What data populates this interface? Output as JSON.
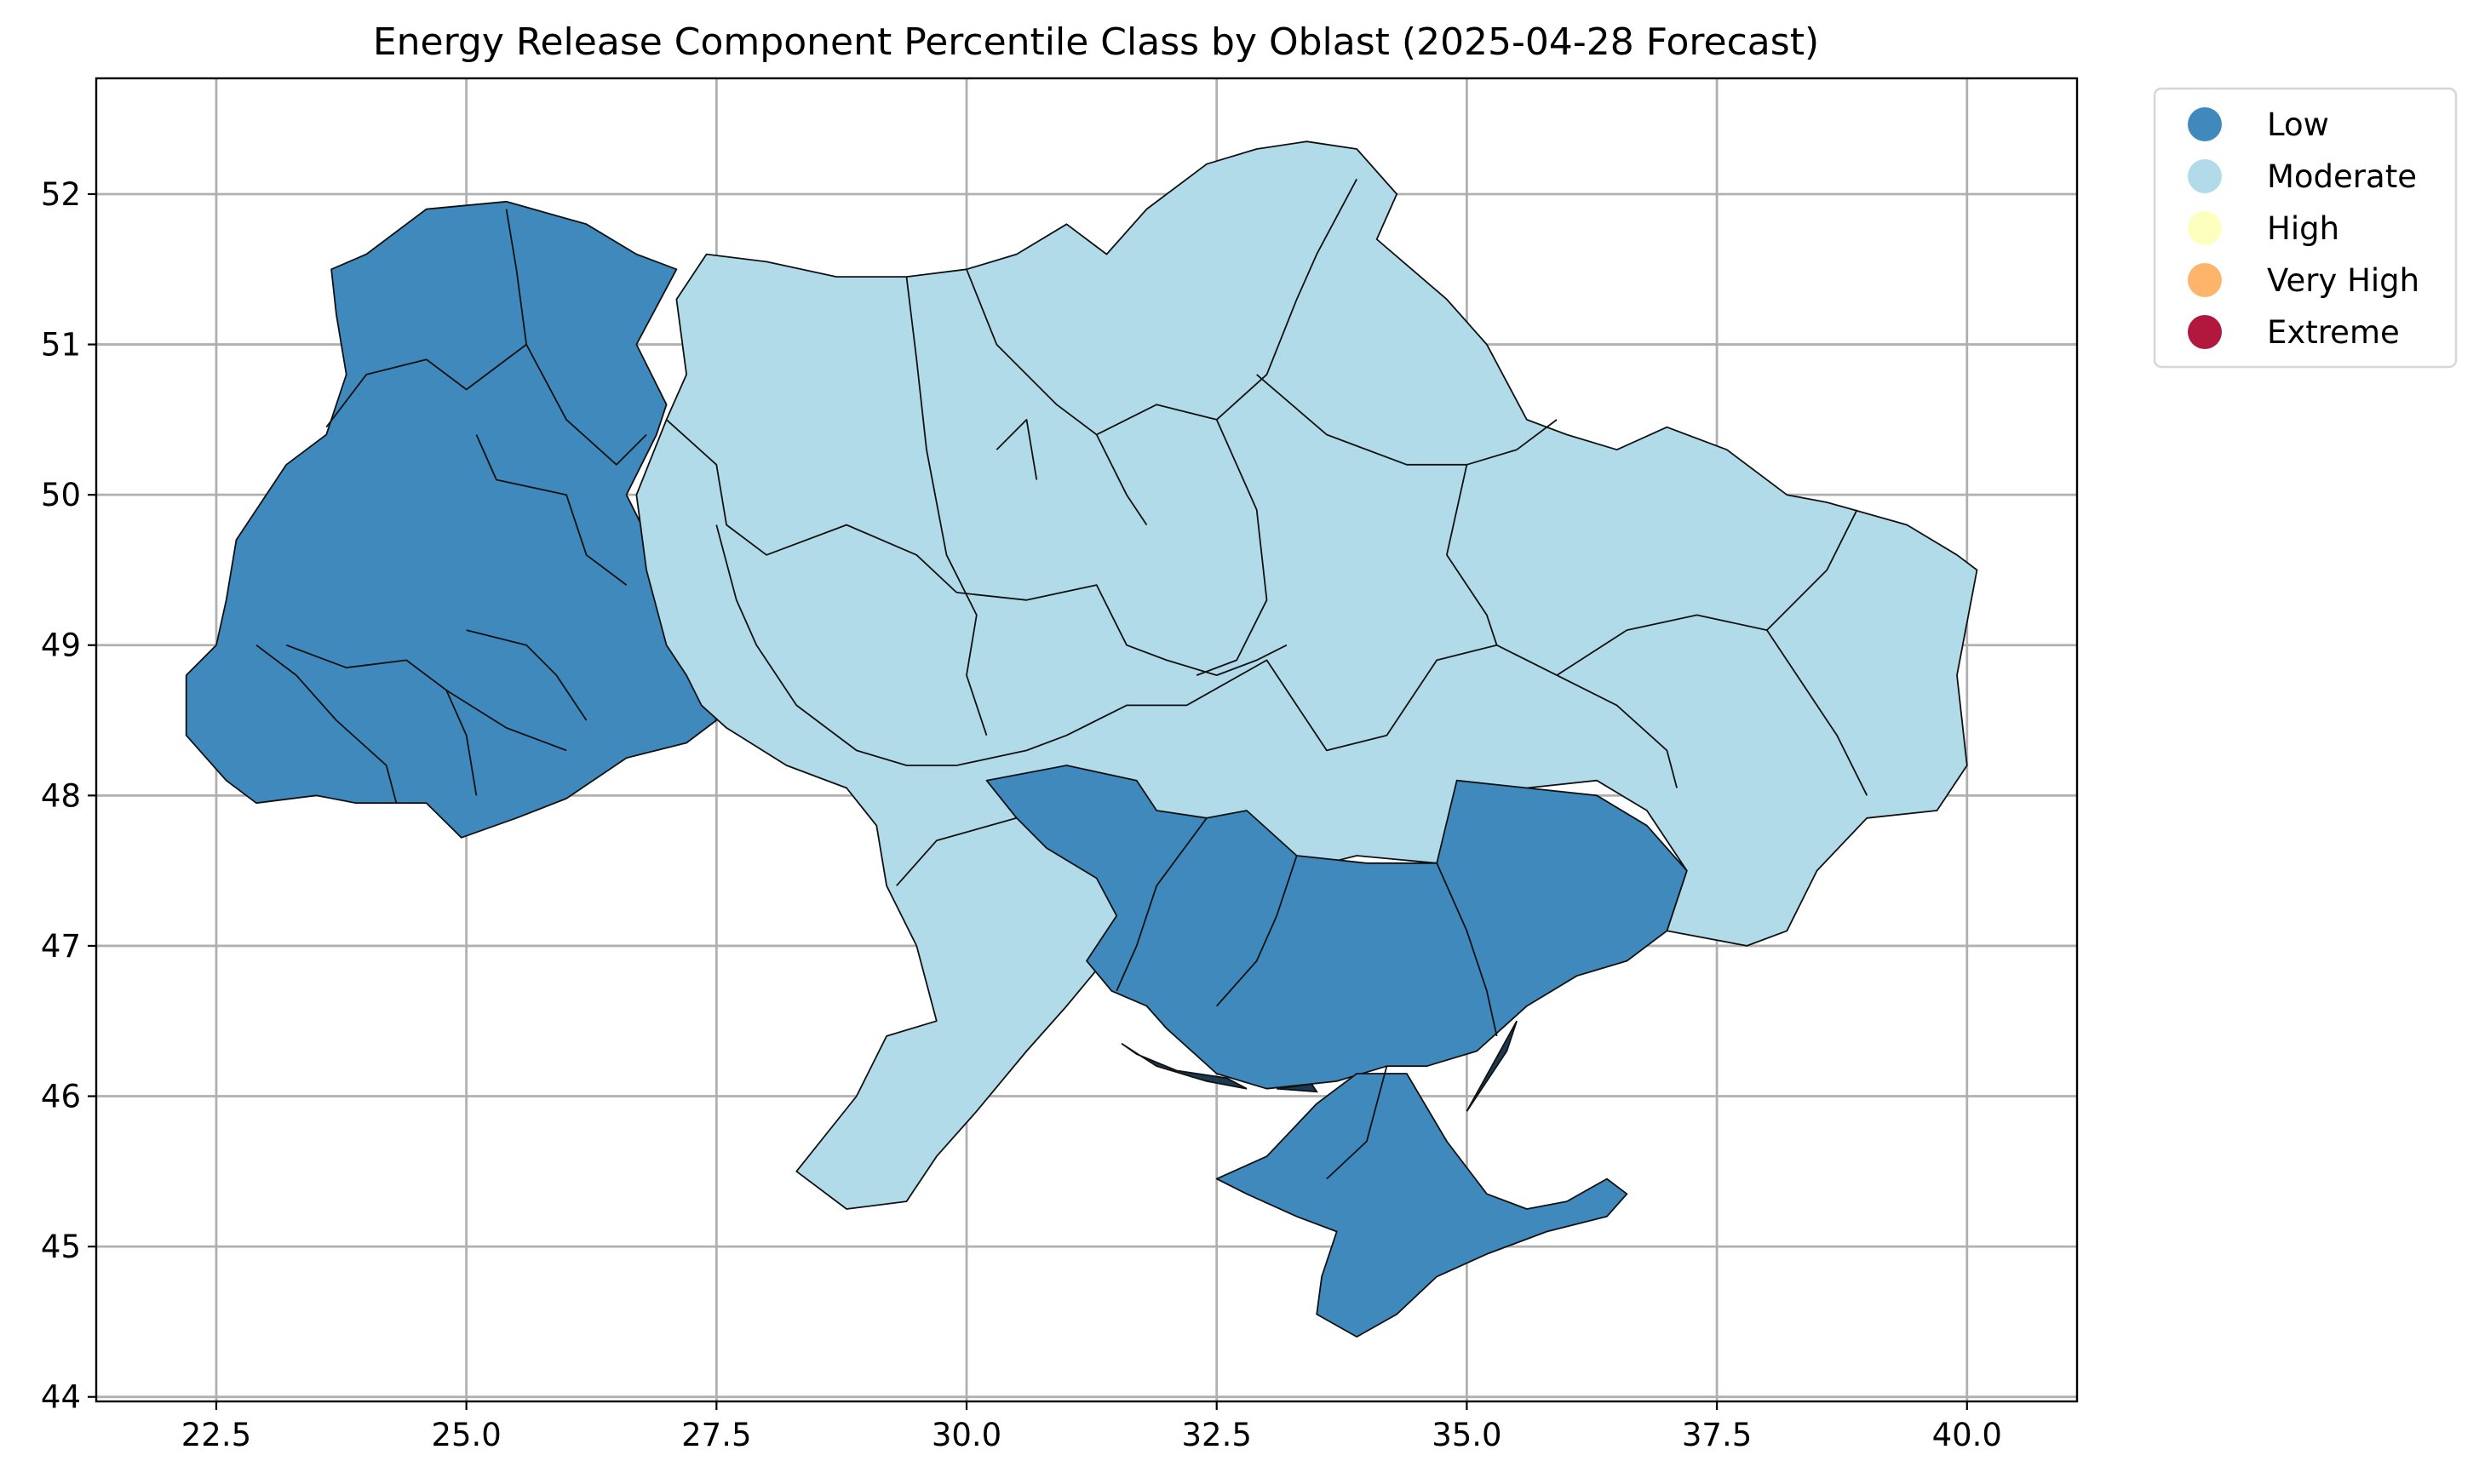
{
  "title": "Energy Release Component Percentile Class by Oblast (2025-04-28 Forecast)",
  "axes": {
    "xlim": [
      21.3,
      41.1
    ],
    "ylim": [
      43.97,
      52.77
    ],
    "x_ticks": [
      22.5,
      25.0,
      27.5,
      30.0,
      32.5,
      35.0,
      37.5,
      40.0
    ],
    "x_tick_labels": [
      "22.5",
      "25.0",
      "27.5",
      "30.0",
      "32.5",
      "35.0",
      "37.5",
      "40.0"
    ],
    "y_ticks": [
      44,
      45,
      46,
      47,
      48,
      49,
      50,
      51,
      52
    ],
    "y_tick_labels": [
      "44",
      "45",
      "46",
      "47",
      "48",
      "49",
      "50",
      "51",
      "52"
    ],
    "grid": true
  },
  "legend": {
    "placement": "outside-top-right",
    "items": [
      {
        "label": "Low",
        "color": "#4089bd"
      },
      {
        "label": "Moderate",
        "color": "#b2dbe9"
      },
      {
        "label": "High",
        "color": "#fdffbf"
      },
      {
        "label": "Very High",
        "color": "#fdb56c"
      },
      {
        "label": "Extreme",
        "color": "#b2173e"
      }
    ]
  },
  "chart_data": {
    "type": "choropleth",
    "units": "degrees longitude / latitude",
    "classes": [
      "Low",
      "Moderate",
      "High",
      "Very High",
      "Extreme"
    ],
    "regions": [
      {
        "class": "Low",
        "outline": [
          [
            22.2,
            48.4
          ],
          [
            22.6,
            48.1
          ],
          [
            22.9,
            47.95
          ],
          [
            23.5,
            48.0
          ],
          [
            23.9,
            47.95
          ],
          [
            24.6,
            47.95
          ],
          [
            24.95,
            47.72
          ],
          [
            25.5,
            47.85
          ],
          [
            26.0,
            47.98
          ],
          [
            26.6,
            48.25
          ],
          [
            27.2,
            48.35
          ],
          [
            27.5,
            48.5
          ],
          [
            27.35,
            48.7
          ],
          [
            27.0,
            49.1
          ],
          [
            26.9,
            49.6
          ],
          [
            26.6,
            50.0
          ],
          [
            26.9,
            50.4
          ],
          [
            27.0,
            50.6
          ],
          [
            26.7,
            51.0
          ],
          [
            27.1,
            51.5
          ],
          [
            26.7,
            51.6
          ],
          [
            26.2,
            51.8
          ],
          [
            25.4,
            51.95
          ],
          [
            24.6,
            51.9
          ],
          [
            24.0,
            51.6
          ],
          [
            23.65,
            51.5
          ],
          [
            23.7,
            51.2
          ],
          [
            23.8,
            50.8
          ],
          [
            23.6,
            50.4
          ],
          [
            23.2,
            50.2
          ],
          [
            22.7,
            49.7
          ],
          [
            22.6,
            49.3
          ],
          [
            22.5,
            49.0
          ],
          [
            22.2,
            48.8
          ],
          [
            22.2,
            48.6
          ]
        ]
      },
      {
        "class": "Moderate",
        "outline": [
          [
            27.35,
            48.6
          ],
          [
            27.6,
            48.45
          ],
          [
            28.2,
            48.2
          ],
          [
            28.8,
            48.05
          ],
          [
            29.1,
            47.8
          ],
          [
            29.2,
            47.4
          ],
          [
            29.5,
            47.0
          ],
          [
            29.7,
            46.5
          ],
          [
            29.2,
            46.4
          ],
          [
            28.9,
            46.0
          ],
          [
            28.3,
            45.5
          ],
          [
            28.8,
            45.25
          ],
          [
            29.4,
            45.3
          ],
          [
            29.7,
            45.6
          ],
          [
            30.1,
            45.9
          ],
          [
            30.6,
            46.3
          ],
          [
            31.0,
            46.6
          ],
          [
            31.5,
            47.0
          ],
          [
            32.2,
            47.2
          ],
          [
            32.8,
            47.3
          ],
          [
            33.3,
            47.5
          ],
          [
            33.9,
            47.6
          ],
          [
            34.7,
            47.55
          ],
          [
            35.0,
            47.9
          ],
          [
            35.6,
            48.05
          ],
          [
            36.3,
            48.1
          ],
          [
            36.8,
            47.9
          ],
          [
            37.2,
            47.5
          ],
          [
            37.0,
            47.1
          ],
          [
            37.8,
            47.0
          ],
          [
            38.2,
            47.1
          ],
          [
            38.5,
            47.5
          ],
          [
            39.0,
            47.85
          ],
          [
            39.7,
            47.9
          ],
          [
            40.0,
            48.2
          ],
          [
            39.9,
            48.8
          ],
          [
            40.1,
            49.5
          ],
          [
            39.9,
            49.6
          ],
          [
            39.4,
            49.8
          ],
          [
            38.6,
            49.95
          ],
          [
            38.2,
            50.0
          ],
          [
            37.6,
            50.3
          ],
          [
            37.0,
            50.45
          ],
          [
            36.5,
            50.3
          ],
          [
            36.0,
            50.4
          ],
          [
            35.6,
            50.5
          ],
          [
            35.2,
            51.0
          ],
          [
            34.8,
            51.3
          ],
          [
            34.1,
            51.7
          ],
          [
            34.3,
            52.0
          ],
          [
            33.9,
            52.3
          ],
          [
            33.4,
            52.35
          ],
          [
            32.9,
            52.3
          ],
          [
            32.4,
            52.2
          ],
          [
            31.8,
            51.9
          ],
          [
            31.4,
            51.6
          ],
          [
            31.0,
            51.8
          ],
          [
            30.5,
            51.6
          ],
          [
            30.0,
            51.5
          ],
          [
            29.4,
            51.45
          ],
          [
            28.7,
            51.45
          ],
          [
            28.0,
            51.55
          ],
          [
            27.4,
            51.6
          ],
          [
            27.1,
            51.3
          ],
          [
            27.2,
            50.8
          ],
          [
            27.0,
            50.5
          ],
          [
            26.7,
            50.0
          ],
          [
            26.8,
            49.5
          ],
          [
            27.0,
            49.0
          ],
          [
            27.2,
            48.8
          ]
        ]
      },
      {
        "class": "Low",
        "outline": [
          [
            30.2,
            48.1
          ],
          [
            31.0,
            48.2
          ],
          [
            31.7,
            48.1
          ],
          [
            31.9,
            47.9
          ],
          [
            32.4,
            47.85
          ],
          [
            32.8,
            47.9
          ],
          [
            33.3,
            47.6
          ],
          [
            34.0,
            47.55
          ],
          [
            34.7,
            47.55
          ],
          [
            34.9,
            48.1
          ],
          [
            35.6,
            48.05
          ],
          [
            36.3,
            48.0
          ],
          [
            36.8,
            47.8
          ],
          [
            37.2,
            47.5
          ],
          [
            37.0,
            47.1
          ],
          [
            36.6,
            46.9
          ],
          [
            36.1,
            46.8
          ],
          [
            35.6,
            46.6
          ],
          [
            35.1,
            46.3
          ],
          [
            34.6,
            46.2
          ],
          [
            34.2,
            46.2
          ],
          [
            33.7,
            46.1
          ],
          [
            33.0,
            46.05
          ],
          [
            32.5,
            46.15
          ],
          [
            32.0,
            46.45
          ],
          [
            31.8,
            46.6
          ],
          [
            31.45,
            46.7
          ],
          [
            31.2,
            46.9
          ],
          [
            31.5,
            47.2
          ],
          [
            31.3,
            47.45
          ],
          [
            30.8,
            47.65
          ],
          [
            30.5,
            47.85
          ]
        ]
      },
      {
        "class": "Low",
        "outline": [
          [
            32.5,
            45.45
          ],
          [
            33.0,
            45.6
          ],
          [
            33.5,
            45.95
          ],
          [
            33.9,
            46.15
          ],
          [
            34.4,
            46.15
          ],
          [
            34.8,
            45.7
          ],
          [
            35.2,
            45.35
          ],
          [
            35.6,
            45.25
          ],
          [
            36.0,
            45.3
          ],
          [
            36.4,
            45.45
          ],
          [
            36.6,
            45.35
          ],
          [
            36.4,
            45.2
          ],
          [
            35.8,
            45.1
          ],
          [
            35.2,
            44.95
          ],
          [
            34.7,
            44.8
          ],
          [
            34.3,
            44.55
          ],
          [
            33.9,
            44.4
          ],
          [
            33.5,
            44.55
          ],
          [
            33.55,
            44.8
          ],
          [
            33.7,
            45.1
          ],
          [
            33.3,
            45.2
          ],
          [
            32.8,
            45.35
          ]
        ]
      }
    ],
    "boundaries": [
      [
        [
          25.4,
          51.9
        ],
        [
          25.5,
          51.5
        ],
        [
          25.6,
          51.0
        ],
        [
          25.0,
          50.7
        ],
        [
          24.6,
          50.9
        ],
        [
          24.0,
          50.8
        ],
        [
          23.6,
          50.45
        ]
      ],
      [
        [
          25.6,
          51.0
        ],
        [
          26.0,
          50.5
        ],
        [
          26.5,
          50.2
        ],
        [
          26.8,
          50.4
        ]
      ],
      [
        [
          25.1,
          50.4
        ],
        [
          25.3,
          50.1
        ],
        [
          26.0,
          50.0
        ],
        [
          26.2,
          49.6
        ],
        [
          26.6,
          49.4
        ]
      ],
      [
        [
          23.2,
          49.0
        ],
        [
          23.8,
          48.85
        ],
        [
          24.4,
          48.9
        ],
        [
          24.8,
          48.7
        ],
        [
          25.4,
          48.45
        ],
        [
          26.0,
          48.3
        ]
      ],
      [
        [
          25.0,
          49.1
        ],
        [
          25.6,
          49.0
        ],
        [
          25.9,
          48.8
        ],
        [
          26.2,
          48.5
        ]
      ],
      [
        [
          24.8,
          48.7
        ],
        [
          25.0,
          48.4
        ],
        [
          25.1,
          48.0
        ]
      ],
      [
        [
          22.9,
          49.0
        ],
        [
          23.3,
          48.8
        ],
        [
          23.7,
          48.5
        ],
        [
          24.2,
          48.2
        ],
        [
          24.3,
          47.95
        ]
      ],
      [
        [
          27.0,
          50.5
        ],
        [
          27.5,
          50.2
        ],
        [
          27.6,
          49.8
        ],
        [
          28.0,
          49.6
        ],
        [
          28.8,
          49.8
        ],
        [
          29.5,
          49.6
        ],
        [
          29.9,
          49.35
        ]
      ],
      [
        [
          27.5,
          49.8
        ],
        [
          27.7,
          49.3
        ],
        [
          27.9,
          49.0
        ],
        [
          28.3,
          48.6
        ],
        [
          28.9,
          48.3
        ],
        [
          29.4,
          48.2
        ],
        [
          29.9,
          48.2
        ]
      ],
      [
        [
          29.4,
          51.45
        ],
        [
          29.5,
          50.9
        ],
        [
          29.6,
          50.3
        ],
        [
          29.8,
          49.6
        ],
        [
          30.1,
          49.2
        ],
        [
          30.0,
          48.8
        ],
        [
          30.2,
          48.4
        ]
      ],
      [
        [
          30.0,
          51.5
        ],
        [
          30.3,
          51.0
        ],
        [
          30.9,
          50.6
        ],
        [
          31.3,
          50.4
        ],
        [
          31.6,
          50.0
        ],
        [
          31.8,
          49.8
        ]
      ],
      [
        [
          30.3,
          50.3
        ],
        [
          30.6,
          50.5
        ],
        [
          30.7,
          50.1
        ]
      ],
      [
        [
          31.3,
          50.4
        ],
        [
          31.9,
          50.6
        ],
        [
          32.5,
          50.5
        ],
        [
          33.0,
          50.8
        ],
        [
          33.3,
          51.3
        ],
        [
          33.5,
          51.6
        ],
        [
          33.9,
          52.1
        ]
      ],
      [
        [
          32.5,
          50.5
        ],
        [
          32.9,
          49.9
        ],
        [
          33.0,
          49.3
        ],
        [
          32.7,
          48.9
        ],
        [
          32.3,
          48.8
        ]
      ],
      [
        [
          29.9,
          49.35
        ],
        [
          30.6,
          49.3
        ],
        [
          31.3,
          49.4
        ],
        [
          31.6,
          49.0
        ],
        [
          32.0,
          48.9
        ],
        [
          32.5,
          48.8
        ],
        [
          32.9,
          48.9
        ],
        [
          33.2,
          49.0
        ]
      ],
      [
        [
          29.9,
          48.2
        ],
        [
          30.6,
          48.3
        ],
        [
          31.0,
          48.4
        ],
        [
          31.6,
          48.6
        ],
        [
          32.2,
          48.6
        ],
        [
          33.0,
          48.9
        ],
        [
          33.6,
          48.3
        ],
        [
          34.2,
          48.4
        ],
        [
          34.7,
          48.9
        ],
        [
          35.3,
          49.0
        ]
      ],
      [
        [
          32.9,
          50.8
        ],
        [
          33.6,
          50.4
        ],
        [
          34.4,
          50.2
        ],
        [
          35.0,
          50.2
        ],
        [
          35.5,
          50.3
        ],
        [
          35.9,
          50.5
        ]
      ],
      [
        [
          35.0,
          50.2
        ],
        [
          34.8,
          49.6
        ],
        [
          35.2,
          49.2
        ],
        [
          35.3,
          49.0
        ],
        [
          35.9,
          48.8
        ],
        [
          36.5,
          48.6
        ],
        [
          37.0,
          48.3
        ],
        [
          37.1,
          48.05
        ]
      ],
      [
        [
          35.9,
          48.8
        ],
        [
          36.6,
          49.1
        ],
        [
          37.3,
          49.2
        ],
        [
          38.0,
          49.1
        ],
        [
          38.3,
          48.8
        ],
        [
          38.7,
          48.4
        ],
        [
          39.0,
          48.0
        ]
      ],
      [
        [
          38.0,
          49.1
        ],
        [
          38.6,
          49.5
        ],
        [
          38.9,
          49.9
        ]
      ],
      [
        [
          32.4,
          47.85
        ],
        [
          31.9,
          47.4
        ],
        [
          31.7,
          47.0
        ],
        [
          31.5,
          46.7
        ]
      ],
      [
        [
          33.3,
          47.6
        ],
        [
          33.1,
          47.2
        ],
        [
          32.9,
          46.9
        ],
        [
          32.5,
          46.6
        ]
      ],
      [
        [
          34.7,
          47.55
        ],
        [
          35.0,
          47.1
        ],
        [
          35.2,
          46.7
        ],
        [
          35.3,
          46.4
        ]
      ],
      [
        [
          34.2,
          46.2
        ],
        [
          34.0,
          45.7
        ],
        [
          33.6,
          45.45
        ]
      ],
      [
        [
          30.5,
          47.85
        ],
        [
          29.7,
          47.7
        ],
        [
          29.3,
          47.4
        ]
      ]
    ],
    "spits": [
      [
        [
          31.55,
          46.35
        ],
        [
          31.9,
          46.2
        ],
        [
          32.4,
          46.1
        ],
        [
          32.8,
          46.05
        ],
        [
          32.6,
          46.12
        ],
        [
          32.1,
          46.17
        ],
        [
          31.7,
          46.28
        ]
      ],
      [
        [
          35.0,
          45.9
        ],
        [
          35.4,
          46.3
        ],
        [
          35.5,
          46.5
        ],
        [
          35.25,
          46.2
        ]
      ],
      [
        [
          33.1,
          46.05
        ],
        [
          33.5,
          46.03
        ],
        [
          33.45,
          46.08
        ]
      ]
    ]
  }
}
